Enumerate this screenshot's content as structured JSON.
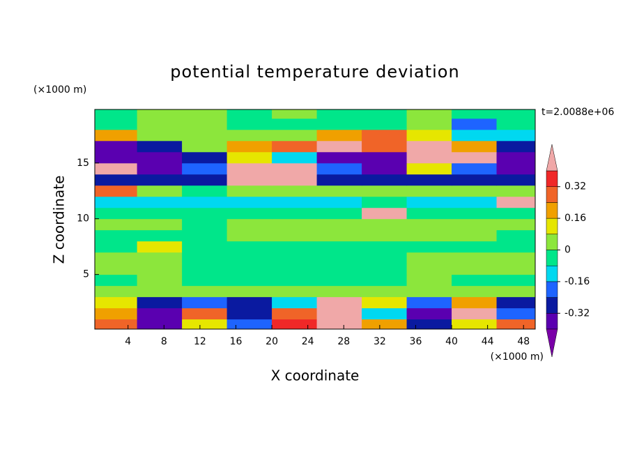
{
  "chart_data": {
    "type": "contour",
    "title": "potential temperature deviation",
    "y_unit": "(×1000 m)",
    "x_unit": "(×1000 m)",
    "time_label": "t=2.0088e+06",
    "xlabel": "X coordinate",
    "ylabel": "Z coordinate",
    "xlim": [
      0.3,
      49.3
    ],
    "ylim": [
      0.1,
      19.8
    ],
    "xticks": [
      4,
      8,
      12,
      16,
      20,
      24,
      28,
      32,
      36,
      40,
      44,
      48
    ],
    "yticks": [
      5,
      10,
      15
    ],
    "x": [
      2.5,
      7.5,
      12.5,
      17.5,
      22.5,
      27.5,
      32.5,
      37.5,
      42.5,
      47.5
    ],
    "z": [
      0.5,
      1.5,
      2.5,
      3.5,
      4.5,
      5.5,
      6.5,
      7.5,
      8.5,
      9.5,
      10.5,
      11.5,
      12.5,
      13.5,
      14.5,
      15.5,
      16.5,
      17.5,
      18.5,
      19.5
    ],
    "values": [
      [
        0.3,
        -0.35,
        0.1,
        -0.2,
        0.35,
        0.45,
        0.2,
        -0.3,
        0.1,
        0.3
      ],
      [
        0.2,
        -0.4,
        0.3,
        -0.3,
        0.25,
        0.45,
        -0.1,
        -0.35,
        0.45,
        -0.2
      ],
      [
        0.1,
        -0.3,
        -0.2,
        -0.25,
        -0.1,
        0.45,
        0.1,
        -0.2,
        0.2,
        -0.3
      ],
      [
        0.02,
        0.02,
        0.02,
        0.02,
        0.02,
        0.02,
        0.02,
        0.02,
        0.02,
        0.02
      ],
      [
        -0.04,
        0.04,
        -0.04,
        -0.04,
        -0.04,
        -0.04,
        -0.04,
        0.04,
        -0.04,
        -0.04
      ],
      [
        0.04,
        0.04,
        -0.04,
        -0.04,
        -0.04,
        -0.04,
        -0.04,
        0.04,
        0.04,
        0.04
      ],
      [
        0.04,
        0.04,
        -0.04,
        -0.04,
        -0.04,
        -0.04,
        -0.04,
        0.04,
        0.04,
        0.04
      ],
      [
        -0.04,
        0.1,
        -0.04,
        -0.04,
        -0.04,
        -0.04,
        -0.04,
        -0.04,
        -0.04,
        -0.04
      ],
      [
        -0.04,
        -0.04,
        -0.04,
        0.04,
        0.04,
        0.04,
        0.04,
        0.04,
        0.04,
        -0.04
      ],
      [
        0.04,
        0.04,
        -0.04,
        0.04,
        0.04,
        0.04,
        0.04,
        0.04,
        0.04,
        0.04
      ],
      [
        -0.04,
        -0.04,
        -0.04,
        -0.04,
        -0.04,
        -0.04,
        0.45,
        -0.04,
        -0.04,
        -0.04
      ],
      [
        -0.12,
        -0.12,
        -0.12,
        -0.12,
        -0.12,
        -0.12,
        -0.04,
        -0.12,
        -0.12,
        0.45
      ],
      [
        0.3,
        0.04,
        -0.04,
        0.04,
        0.04,
        0.04,
        0.04,
        0.04,
        0.04,
        0.04
      ],
      [
        -0.3,
        -0.3,
        -0.3,
        0.45,
        0.45,
        -0.3,
        -0.3,
        -0.3,
        -0.3,
        -0.3
      ],
      [
        0.45,
        -0.36,
        -0.2,
        0.45,
        0.45,
        -0.2,
        -0.36,
        0.1,
        -0.2,
        -0.36
      ],
      [
        -0.36,
        -0.36,
        -0.25,
        0.1,
        -0.1,
        -0.36,
        -0.36,
        0.45,
        0.45,
        -0.36
      ],
      [
        -0.36,
        -0.3,
        0.04,
        0.2,
        0.3,
        0.45,
        0.3,
        0.45,
        0.2,
        -0.3
      ],
      [
        0.2,
        0.04,
        0.04,
        0.04,
        0.04,
        0.2,
        0.25,
        0.1,
        -0.12,
        -0.12
      ],
      [
        -0.04,
        0.04,
        0.04,
        -0.04,
        -0.04,
        -0.04,
        -0.04,
        0.04,
        -0.2,
        -0.04
      ],
      [
        -0.04,
        0.04,
        0.04,
        -0.04,
        0.04,
        -0.04,
        -0.04,
        0.04,
        -0.04,
        -0.04
      ]
    ],
    "levels": [
      -0.4,
      -0.32,
      -0.24,
      -0.16,
      -0.08,
      0,
      0.08,
      0.16,
      0.24,
      0.32,
      0.4
    ],
    "colors": [
      "#7a00a8",
      "#5a00b0",
      "#0a1aa0",
      "#1e64ff",
      "#00d8f0",
      "#00e68a",
      "#8ce63c",
      "#e6e600",
      "#f0a000",
      "#f06428",
      "#f02828",
      "#f0a8a8"
    ],
    "colorbar_ticks": [
      -0.32,
      -0.16,
      0,
      0.16,
      0.32
    ]
  }
}
